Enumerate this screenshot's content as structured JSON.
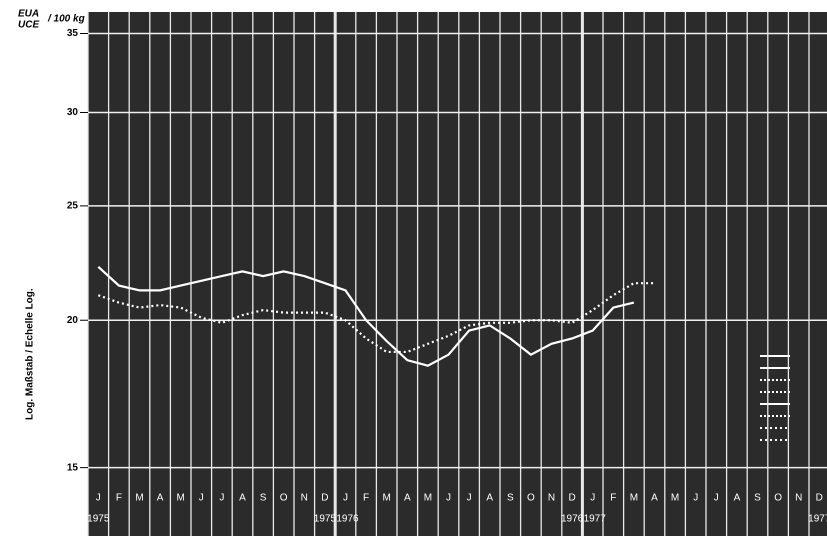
{
  "chart_data": {
    "type": "line",
    "unit_top": "EUA",
    "unit_bottom": "UCE",
    "unit_per": "/ 100 kg",
    "ylabel": "Log. Maßstab / Echelle Log.",
    "categories": [
      "J",
      "F",
      "M",
      "A",
      "M",
      "J",
      "J",
      "A",
      "S",
      "O",
      "N",
      "D",
      "J",
      "F",
      "M",
      "A",
      "M",
      "J",
      "J",
      "A",
      "S",
      "O",
      "N",
      "D",
      "J",
      "F",
      "M",
      "A",
      "M",
      "J",
      "J",
      "A",
      "S",
      "O",
      "N",
      "D"
    ],
    "year_labels": [
      "1975",
      "1975",
      "1976",
      "1976",
      "1977",
      "1977"
    ],
    "log_scale": true,
    "ylim": [
      14.5,
      36.5
    ],
    "yticks": [
      15,
      20,
      25,
      30,
      35
    ],
    "grid": true,
    "series": [
      {
        "color": "#ffffff",
        "style": "solid",
        "values": [
          22.2,
          21.4,
          21.2,
          21.2,
          21.4,
          21.6,
          21.8,
          22.0,
          21.8,
          22.0,
          21.8,
          21.5,
          21.2,
          20.0,
          19.2,
          18.5,
          18.3,
          18.7,
          19.6,
          19.8,
          19.3,
          18.7,
          19.1,
          19.3,
          19.6,
          20.5,
          20.7,
          null,
          null,
          null,
          null,
          null,
          null,
          null,
          null,
          null
        ]
      },
      {
        "color": "#ffffff",
        "style": "dotted",
        "values": [
          21.0,
          20.7,
          20.5,
          20.6,
          20.5,
          20.1,
          19.9,
          20.2,
          20.4,
          20.3,
          20.3,
          20.3,
          20.0,
          19.3,
          18.8,
          18.8,
          19.1,
          19.4,
          19.8,
          19.9,
          19.9,
          20.0,
          20.0,
          19.9,
          20.4,
          21.0,
          21.5,
          21.5,
          null,
          null,
          null,
          null,
          null,
          null,
          null,
          null
        ]
      }
    ]
  }
}
